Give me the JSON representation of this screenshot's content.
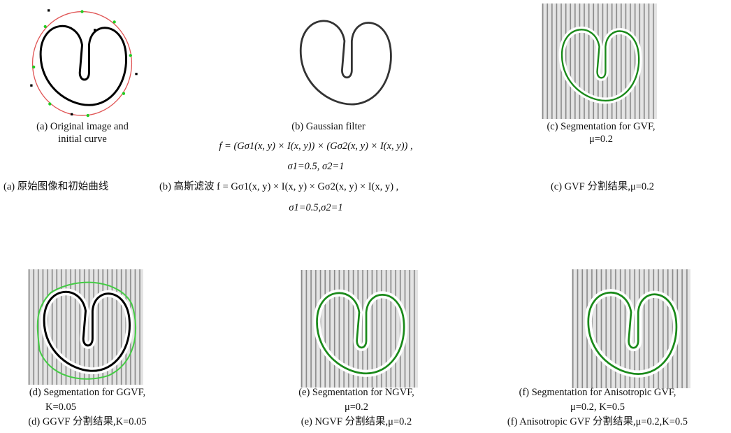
{
  "panels": [
    {
      "caption_en": [
        "(a) Original image and",
        "initial curve"
      ],
      "caption_zh": "(a) 原始图像和初始曲线"
    },
    {
      "caption_en": [
        "(b) Gaussian filter",
        "f = (Gσ1(x, y) × I(x, y)) × (Gσ2(x, y) × I(x, y)) ,",
        "σ1=0.5, σ2=1"
      ],
      "caption_zh": [
        "(b) 高斯滤波 f = Gσ1(x, y) × I(x, y) × Gσ2(x, y) × I(x, y) ,",
        "σ1=0.5,σ2=1"
      ]
    },
    {
      "caption_en": [
        "(c) Segmentation for GVF,",
        "μ=0.2"
      ],
      "caption_zh": "(c) GVF 分割结果,μ=0.2"
    },
    {
      "caption_en": [
        "(d) Segmentation for GGVF,",
        "K=0.05"
      ],
      "caption_zh": "(d) GGVF 分割结果,K=0.05"
    },
    {
      "caption_en": [
        "(e) Segmentation for NGVF,",
        "μ=0.2"
      ],
      "caption_zh": "(e) NGVF 分割结果,μ=0.2"
    },
    {
      "caption_en": [
        "(f) Segmentation for Anisotropic GVF,",
        "μ=0.2, K=0.5"
      ],
      "caption_zh": "(f) Anisotropic GVF 分割结果,μ=0.2,K=0.5"
    }
  ]
}
